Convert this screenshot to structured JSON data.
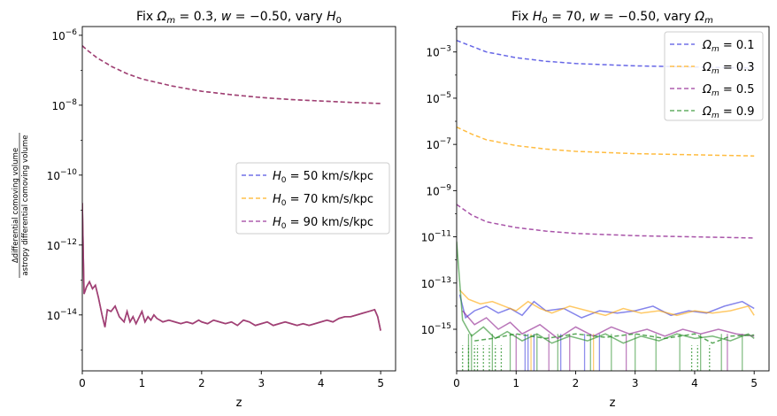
{
  "chart_data": [
    {
      "type": "line",
      "title": "Fix Ωm = 0.3, w = −0.50, vary H0",
      "title_parts": {
        "a": "Fix ",
        "b": "Ω",
        "c": "m",
        "d": " = 0.3, ",
        "e": "w",
        "f": " = −0.50, vary ",
        "g": "H",
        "h": "0"
      },
      "xlabel": "z",
      "ylabel": "Δdifferential comoving volume / astropy differential comoving volume",
      "ylabel_num": "Δdifferential comoving volume",
      "ylabel_den": "astropy differential comoving volume",
      "yscale": "log",
      "xlim": [
        0,
        5.25
      ],
      "ylim_exp": [
        -15.6,
        -5.75
      ],
      "x_ticks": [
        0,
        1,
        2,
        3,
        4,
        5
      ],
      "x_tick_labels": [
        "0",
        "1",
        "2",
        "3",
        "4",
        "5"
      ],
      "y_tick_exps": [
        -14,
        -12,
        -10,
        -8,
        -6
      ],
      "y_tick_labels": [
        "−14",
        "−12",
        "−10",
        "−8",
        "−6"
      ],
      "legend_location": "center-right",
      "legend": [
        {
          "name": "H0 = 50 km/s/kpc",
          "sym": "H",
          "sub": "0",
          "rest": " = 50 km/s/kpc",
          "color": "#3333dd"
        },
        {
          "name": "H0 = 70 km/s/kpc",
          "sym": "H",
          "sub": "0",
          "rest": " = 70 km/s/kpc",
          "color": "#ffa500"
        },
        {
          "name": "H0 = 90 km/s/kpc",
          "sym": "H",
          "sub": "0",
          "rest": " = 90 km/s/kpc",
          "color": "#8b1a8b"
        }
      ],
      "dashed_series": {
        "description": "approximation error (same for all H0)",
        "x": [
          0,
          0.1,
          0.25,
          0.5,
          0.75,
          1.0,
          1.5,
          2.0,
          2.5,
          3.0,
          3.5,
          4.0,
          4.5,
          5.0
        ],
        "log10_y": [
          -6.3,
          -6.45,
          -6.65,
          -6.9,
          -7.1,
          -7.25,
          -7.45,
          -7.6,
          -7.7,
          -7.78,
          -7.84,
          -7.88,
          -7.92,
          -7.95
        ]
      },
      "solid_series": {
        "description": "numerical noise (same for all H0)",
        "x": [
          0,
          0.03,
          0.07,
          0.12,
          0.17,
          0.22,
          0.27,
          0.33,
          0.38,
          0.42,
          0.48,
          0.55,
          0.62,
          0.7,
          0.75,
          0.8,
          0.85,
          0.9,
          1.0,
          1.05,
          1.1,
          1.15,
          1.2,
          1.25,
          1.3,
          1.35,
          1.45,
          1.55,
          1.65,
          1.75,
          1.85,
          1.95,
          2.0,
          2.1,
          2.2,
          2.3,
          2.4,
          2.5,
          2.6,
          2.7,
          2.8,
          2.9,
          3.0,
          3.1,
          3.2,
          3.3,
          3.4,
          3.5,
          3.6,
          3.7,
          3.8,
          3.9,
          4.0,
          4.1,
          4.2,
          4.3,
          4.4,
          4.5,
          4.6,
          4.7,
          4.8,
          4.9,
          4.95,
          5.0
        ],
        "log10_y": [
          -10.8,
          -13.4,
          -13.2,
          -13.05,
          -13.25,
          -13.15,
          -13.5,
          -14.0,
          -14.35,
          -13.85,
          -13.9,
          -13.75,
          -14.05,
          -14.2,
          -13.9,
          -14.2,
          -14.05,
          -14.25,
          -13.9,
          -14.2,
          -14.05,
          -14.15,
          -14.0,
          -14.1,
          -14.15,
          -14.2,
          -14.15,
          -14.2,
          -14.25,
          -14.2,
          -14.25,
          -14.15,
          -14.2,
          -14.25,
          -14.15,
          -14.2,
          -14.25,
          -14.2,
          -14.3,
          -14.15,
          -14.2,
          -14.3,
          -14.25,
          -14.2,
          -14.3,
          -14.25,
          -14.2,
          -14.25,
          -14.3,
          -14.25,
          -14.3,
          -14.25,
          -14.2,
          -14.15,
          -14.2,
          -14.1,
          -14.05,
          -14.05,
          -14.0,
          -13.95,
          -13.9,
          -13.85,
          -14.05,
          -14.45
        ]
      }
    },
    {
      "type": "line",
      "title": "Fix H0 = 70, w = −0.50, vary Ωm",
      "title_parts": {
        "a": "Fix ",
        "b": "H",
        "c": "0",
        "d": " = 70, ",
        "e": "w",
        "f": " = −0.50, vary ",
        "g": "Ω",
        "h": "m"
      },
      "xlabel": "z",
      "yscale": "log",
      "xlim": [
        0,
        5.25
      ],
      "ylim_exp": [
        -16.8,
        -1.9
      ],
      "x_ticks": [
        0,
        1,
        2,
        3,
        4,
        5
      ],
      "x_tick_labels": [
        "0",
        "1",
        "2",
        "3",
        "4",
        "5"
      ],
      "y_tick_exps": [
        -15,
        -13,
        -11,
        -9,
        -7,
        -5,
        -3
      ],
      "y_tick_labels": [
        "−15",
        "−13",
        "−11",
        "−9",
        "−7",
        "−5",
        "−3"
      ],
      "legend_location": "top-right",
      "legend": [
        {
          "name": "Ωm = 0.1",
          "sym": "Ω",
          "sub": "m",
          "rest": " = 0.1",
          "color": "#3333dd"
        },
        {
          "name": "Ωm = 0.3",
          "sym": "Ω",
          "sub": "m",
          "rest": " = 0.3",
          "color": "#ffa500"
        },
        {
          "name": "Ωm = 0.5",
          "sym": "Ω",
          "sub": "m",
          "rest": " = 0.5",
          "color": "#8b1a8b"
        },
        {
          "name": "Ωm = 0.9",
          "sym": "Ω",
          "sub": "m",
          "rest": " = 0.9",
          "color": "#228b22"
        }
      ],
      "dashed_series": [
        {
          "name": "Ωm = 0.1",
          "color": "#3333dd",
          "x": [
            0,
            0.25,
            0.5,
            1.0,
            1.5,
            2.0,
            3.0,
            4.0,
            5.0
          ],
          "log10_y": [
            -2.5,
            -2.75,
            -3.0,
            -3.25,
            -3.4,
            -3.5,
            -3.6,
            -3.65,
            -3.7
          ]
        },
        {
          "name": "Ωm = 0.3",
          "color": "#ffa500",
          "x": [
            0,
            0.25,
            0.5,
            1.0,
            1.5,
            2.0,
            3.0,
            4.0,
            5.0
          ],
          "log10_y": [
            -6.25,
            -6.55,
            -6.8,
            -7.05,
            -7.2,
            -7.3,
            -7.4,
            -7.45,
            -7.5
          ]
        },
        {
          "name": "Ωm = 0.5",
          "color": "#8b1a8b",
          "x": [
            0,
            0.25,
            0.5,
            1.0,
            1.5,
            2.0,
            3.0,
            4.0,
            5.0
          ],
          "log10_y": [
            -9.6,
            -10.05,
            -10.35,
            -10.6,
            -10.75,
            -10.85,
            -10.95,
            -11.0,
            -11.05
          ]
        },
        {
          "name": "Ωm = 0.9",
          "color": "#228b22",
          "x": [
            0.3,
            0.6,
            1.0,
            1.5,
            2.0,
            2.5,
            3.0,
            3.5,
            4.0,
            4.3,
            4.6,
            5.0
          ],
          "log10_y": [
            -15.5,
            -15.4,
            -15.2,
            -15.4,
            -15.2,
            -15.35,
            -15.2,
            -15.4,
            -15.2,
            -15.6,
            -15.3,
            -15.25
          ]
        }
      ],
      "solid_series": [
        {
          "name": "Ωm = 0.1",
          "color": "#3333dd",
          "x": [
            0.05,
            0.15,
            0.3,
            0.5,
            0.7,
            0.9,
            1.1,
            1.3,
            1.5,
            1.8,
            2.1,
            2.4,
            2.7,
            3.0,
            3.3,
            3.6,
            3.9,
            4.2,
            4.5,
            4.8,
            5.0
          ],
          "log10_y": [
            -13.5,
            -14.5,
            -14.2,
            -14.0,
            -14.3,
            -14.1,
            -14.4,
            -13.8,
            -14.2,
            -14.1,
            -14.5,
            -14.2,
            -14.3,
            -14.2,
            -14.0,
            -14.4,
            -14.2,
            -14.3,
            -14.0,
            -13.8,
            -14.1
          ]
        },
        {
          "name": "Ωm = 0.3",
          "color": "#ffa500",
          "x": [
            0.05,
            0.2,
            0.4,
            0.6,
            0.8,
            1.0,
            1.2,
            1.4,
            1.6,
            1.9,
            2.2,
            2.5,
            2.8,
            3.1,
            3.4,
            3.7,
            4.0,
            4.3,
            4.6,
            4.9,
            5.0
          ],
          "log10_y": [
            -13.3,
            -13.7,
            -13.9,
            -13.8,
            -14.0,
            -14.2,
            -13.8,
            -14.1,
            -14.3,
            -14.0,
            -14.2,
            -14.4,
            -14.1,
            -14.3,
            -14.2,
            -14.4,
            -14.2,
            -14.3,
            -14.2,
            -14.0,
            -14.4
          ]
        },
        {
          "name": "Ωm = 0.5",
          "color": "#8b1a8b",
          "x": [
            0.1,
            0.3,
            0.5,
            0.7,
            0.9,
            1.1,
            1.4,
            1.7,
            2.0,
            2.3,
            2.6,
            2.9,
            3.2,
            3.5,
            3.8,
            4.1,
            4.4,
            4.7,
            5.0
          ],
          "log10_y": [
            -14.2,
            -14.8,
            -14.5,
            -15.0,
            -14.7,
            -15.2,
            -14.8,
            -15.4,
            -14.9,
            -15.3,
            -14.9,
            -15.2,
            -15.0,
            -15.3,
            -15.0,
            -15.2,
            -15.0,
            -15.2,
            -15.3
          ]
        },
        {
          "name": "Ωm = 0.9",
          "color": "#228b22",
          "x": [
            0.0,
            0.1,
            0.25,
            0.45,
            0.65,
            0.85,
            1.1,
            1.35,
            1.6,
            1.9,
            2.2,
            2.5,
            2.8,
            3.1,
            3.4,
            3.7,
            4.0,
            4.3,
            4.6,
            4.9,
            5.0
          ],
          "log10_y": [
            -11.2,
            -14.6,
            -15.3,
            -14.9,
            -15.4,
            -15.1,
            -15.5,
            -15.2,
            -15.6,
            -15.3,
            -15.5,
            -15.2,
            -15.6,
            -15.3,
            -15.5,
            -15.2,
            -15.4,
            -15.3,
            -15.5,
            -15.2,
            -15.4
          ]
        }
      ],
      "dropout_lines": [
        {
          "color": "#3333dd",
          "x": [
            1.15,
            1.2,
            1.3,
            1.75,
            2.15,
            2.4
          ]
        },
        {
          "color": "#ffa500",
          "x": [
            1.25,
            2.3
          ]
        },
        {
          "color": "#8b1a8b",
          "x": [
            1.0,
            1.55,
            1.9,
            2.85,
            4.55
          ]
        },
        {
          "color": "#228b22",
          "x": [
            0.2,
            0.25,
            0.6,
            0.9,
            1.35,
            1.7,
            2.25,
            2.6,
            3.0,
            3.35,
            3.75,
            4.1,
            4.45,
            4.8
          ]
        }
      ],
      "dotted_drop_lines": {
        "color": "#228b22",
        "x": [
          0.1,
          0.2,
          0.3,
          0.35,
          0.45,
          0.55,
          0.65,
          0.75,
          3.95,
          4.05,
          4.25
        ]
      }
    }
  ]
}
